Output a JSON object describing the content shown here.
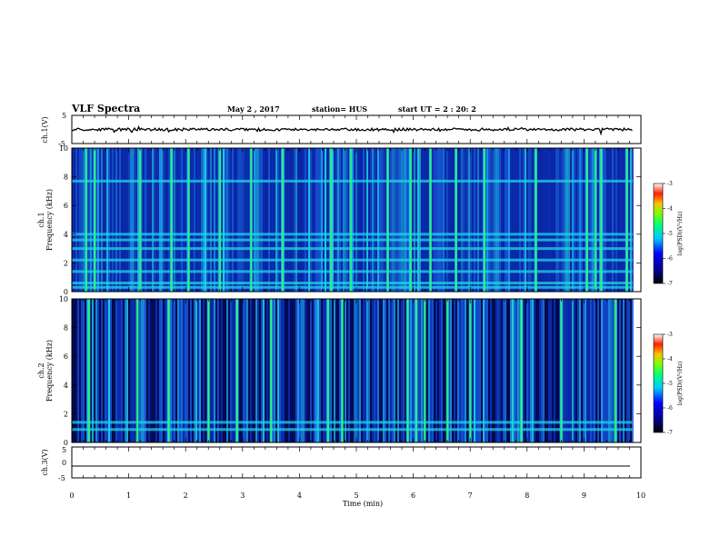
{
  "header": {
    "title": "VLF Spectra",
    "date": "May 2 , 2017",
    "station": "station= HUS",
    "start": "start UT = 2 : 20: 2"
  },
  "colors": {
    "spectrogram_base": "#0a1a8c",
    "spectrogram_dark": "#000840",
    "cyan": "#1fd6e6",
    "green": "#34ff5a",
    "trace": "#000000"
  },
  "chart_data": [
    {
      "type": "line",
      "panel": "ch1-waveform",
      "title": "",
      "ylabel": "ch.1(V)",
      "ylim": [
        -5,
        5
      ],
      "yticks": [
        "5",
        "-5"
      ],
      "x_range": [
        0,
        10
      ],
      "series": [
        {
          "values_note_free": true,
          "level": 0.0
        }
      ]
    },
    {
      "type": "heatmap",
      "panel": "ch1-spectrogram",
      "title": "",
      "ylabel_top": "ch.1",
      "ylabel": "Frequency (kHz)",
      "ylim": [
        0,
        10
      ],
      "yticks": [
        "0",
        "2",
        "4",
        "6",
        "8",
        "10"
      ],
      "x_range": [
        0,
        9.85
      ],
      "colorbar": {
        "label": "log(PSD)(V²/Hz)",
        "ticks": [
          "-3",
          "-4",
          "-5",
          "-6",
          "-7"
        ],
        "range": [
          -7,
          -3
        ]
      },
      "features": {
        "horizontal_bands_khz": [
          0.3,
          0.6,
          1.4,
          2.2,
          3.0,
          3.6,
          4.0,
          7.7
        ],
        "strong_vertical_bursts_min": [
          0.25,
          0.4,
          1.2,
          1.75,
          2.05,
          2.6,
          3.15,
          3.7,
          4.55,
          4.9,
          5.55,
          5.95,
          6.3,
          6.75,
          7.25,
          8.15,
          9.05,
          9.2,
          9.3,
          9.75
        ]
      }
    },
    {
      "type": "heatmap",
      "panel": "ch2-spectrogram",
      "title": "",
      "ylabel_top": "ch.2",
      "ylabel": "Frequency (kHz)",
      "ylim": [
        0,
        10
      ],
      "yticks": [
        "0",
        "2",
        "4",
        "6",
        "8",
        "10"
      ],
      "x_range": [
        0,
        9.85
      ],
      "colorbar": {
        "label": "log(PSD)(V²/Hz)",
        "ticks": [
          "-3",
          "-4",
          "-5",
          "-6",
          "-7"
        ],
        "range": [
          -7,
          -3
        ]
      },
      "features": {
        "horizontal_bands_khz": [
          0.9,
          1.4
        ],
        "strong_vertical_bursts_min": [
          0.3,
          1.15,
          1.7,
          2.4,
          2.9,
          3.5,
          4.5,
          4.75,
          5.9,
          6.05,
          6.2,
          6.6,
          7.0,
          7.9,
          8.6,
          9.55
        ]
      }
    },
    {
      "type": "line",
      "panel": "ch3-waveform",
      "title": "",
      "ylabel": "ch.3(V)",
      "ylim": [
        -5,
        5
      ],
      "yticks": [
        "5",
        "0",
        "-5"
      ],
      "x_range": [
        0,
        10
      ],
      "series": [
        {
          "level": 0.0
        }
      ]
    }
  ],
  "x_axis": {
    "label": "Time (min)",
    "ticks": [
      "0",
      "1",
      "2",
      "3",
      "4",
      "5",
      "6",
      "7",
      "8",
      "9",
      "10"
    ],
    "range": [
      0,
      10
    ]
  }
}
